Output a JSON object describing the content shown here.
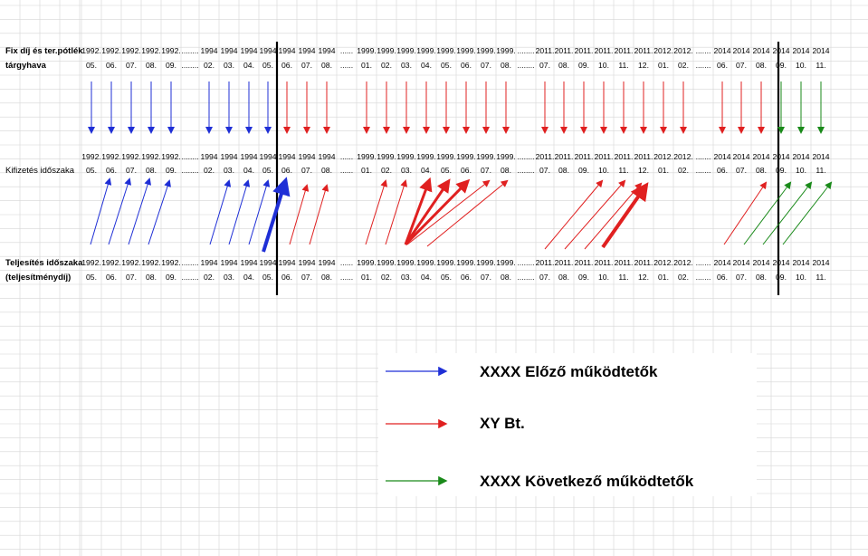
{
  "rows": {
    "fix_dij": {
      "label_line1": "Fix díj és ter.pótlék",
      "label_line2": "tárgyhava",
      "years": [
        "1992.",
        "1992.",
        "1992.",
        "1992.",
        "1992.",
        "........",
        "1994",
        "1994",
        "1994",
        "1994",
        "1994",
        "1994",
        "1994",
        "......",
        "1999.",
        "1999.",
        "1999.",
        "1999.",
        "1999.",
        "1999.",
        "1999.",
        "1999.",
        "........",
        "2011.",
        "2011.",
        "2011.",
        "2011.",
        "2011.",
        "2011.",
        "2012.",
        "2012.",
        ".......",
        "2014",
        "2014",
        "2014",
        "2014",
        "2014",
        "2014"
      ],
      "months": [
        "05.",
        "06.",
        "07.",
        "08.",
        "09.",
        "........",
        "02.",
        "03.",
        "04.",
        "05.",
        "06.",
        "07.",
        "08.",
        "......",
        "01.",
        "02.",
        "03.",
        "04.",
        "05.",
        "06.",
        "07.",
        "08.",
        "........",
        "07.",
        "08.",
        "09.",
        "10.",
        "11.",
        "12.",
        "01.",
        "02.",
        ".......",
        "06.",
        "07.",
        "08.",
        "09.",
        "10.",
        "11."
      ]
    },
    "kifizetes": {
      "label_line1": "Kifizetés időszaka",
      "years": [
        "1992.",
        "1992.",
        "1992.",
        "1992.",
        "1992.",
        "........",
        "1994",
        "1994",
        "1994",
        "1994",
        "1994",
        "1994",
        "1994",
        "......",
        "1999.",
        "1999.",
        "1999.",
        "1999.",
        "1999.",
        "1999.",
        "1999.",
        "1999.",
        "........",
        "2011.",
        "2011.",
        "2011.",
        "2011.",
        "2011.",
        "2011.",
        "2012.",
        "2012.",
        ".......",
        "2014",
        "2014",
        "2014",
        "2014",
        "2014",
        "2014"
      ],
      "months": [
        "05.",
        "06.",
        "07.",
        "08.",
        "09.",
        "........",
        "02.",
        "03.",
        "04.",
        "05.",
        "06.",
        "07.",
        "08.",
        "......",
        "01.",
        "02.",
        "03.",
        "04.",
        "05.",
        "06.",
        "07.",
        "08.",
        "........",
        "07.",
        "08.",
        "09.",
        "10.",
        "11.",
        "12.",
        "01.",
        "02.",
        ".......",
        "06.",
        "07.",
        "08.",
        "09.",
        "10.",
        "11."
      ]
    },
    "teljesites": {
      "label_line1": "Teljesítés időszaka",
      "label_line2": "(teljesítménydíj)",
      "years": [
        "1992.",
        "1992.",
        "1992.",
        "1992.",
        "1992.",
        "........",
        "1994",
        "1994",
        "1994",
        "1994",
        "1994",
        "1994",
        "1994",
        "......",
        "1999.",
        "1999.",
        "1999.",
        "1999.",
        "1999.",
        "1999.",
        "1999.",
        "1999.",
        "........",
        "2011.",
        "2011.",
        "2011.",
        "2011.",
        "2011.",
        "2011.",
        "2012.",
        "2012.",
        ".......",
        "2014",
        "2014",
        "2014",
        "2014",
        "2014",
        "2014"
      ],
      "months": [
        "05.",
        "06.",
        "07.",
        "08.",
        "09.",
        "........",
        "02.",
        "03.",
        "04.",
        "05.",
        "06.",
        "07.",
        "08.",
        "......",
        "01.",
        "02.",
        "03.",
        "04.",
        "05.",
        "06.",
        "07.",
        "08.",
        "........",
        "07.",
        "08.",
        "09.",
        "10.",
        "11.",
        "12.",
        "01.",
        "02.",
        ".......",
        "06.",
        "07.",
        "08.",
        "09.",
        "10.",
        "11."
      ]
    }
  },
  "legend": {
    "items": [
      {
        "label": "XXXX Előző működtetők",
        "color": "#1f2fd6"
      },
      {
        "label": "XY Bt.",
        "color": "#e02020"
      },
      {
        "label": "XXXX Következő működtetők",
        "color": "#1a8a1a"
      }
    ]
  },
  "colors": {
    "blue": "#1f2fd6",
    "red": "#e02020",
    "green": "#1a8a1a",
    "grid": "#d6d6d6"
  }
}
